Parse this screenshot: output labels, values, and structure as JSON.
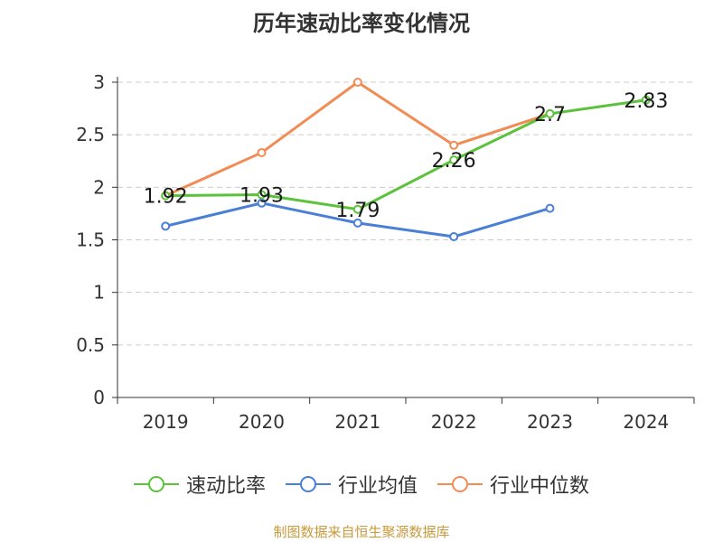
{
  "chart_data": {
    "type": "line",
    "title": "历年速动比率变化情况",
    "categories": [
      "2019",
      "2020",
      "2021",
      "2022",
      "2023",
      "2024"
    ],
    "ylim": [
      0,
      3
    ],
    "yticks": [
      "0",
      "0.5",
      "1",
      "1.5",
      "2",
      "2.5",
      "3"
    ],
    "grid": true,
    "legend_position": "bottom",
    "series": [
      {
        "name": "速动比率",
        "color": "#5cc23c",
        "values": [
          1.92,
          1.93,
          1.79,
          2.26,
          2.7,
          2.83
        ],
        "labels": [
          "1.92",
          "1.93",
          "1.79",
          "2.26",
          "2.7",
          "2.83"
        ]
      },
      {
        "name": "行业均值",
        "color": "#4a7fd6",
        "values": [
          1.63,
          1.85,
          1.66,
          1.53,
          1.8,
          null
        ]
      },
      {
        "name": "行业中位数",
        "color": "#f28c55",
        "values": [
          1.92,
          2.33,
          3.0,
          2.4,
          2.7,
          null
        ]
      }
    ]
  },
  "footer": {
    "source": "制图数据来自恒生聚源数据库"
  }
}
